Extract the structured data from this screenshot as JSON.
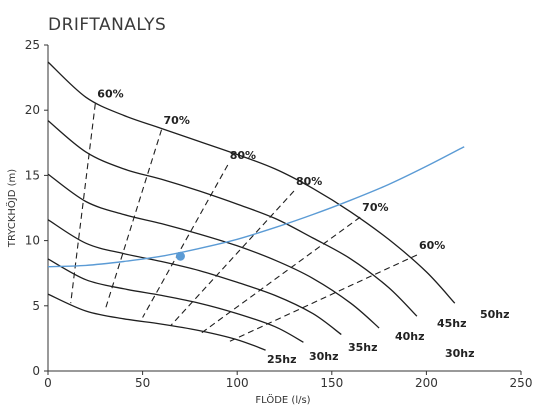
{
  "chart_data": {
    "type": "line",
    "title": "DRIFTANALYS",
    "xlabel": "FLÖDE (l/s)",
    "ylabel": "TRYCKHÖJD (m)",
    "xlim": [
      0,
      250
    ],
    "ylim": [
      0,
      25
    ],
    "x_ticks": [
      "0",
      "50",
      "100",
      "150",
      "200",
      "250"
    ],
    "y_ticks": [
      "0",
      "5",
      "10",
      "15",
      "20",
      "25"
    ],
    "grid": false,
    "colors": {
      "system_curve": "#5b9bd5",
      "operating_point": "#5b9bd5",
      "curves": "#1f1f1f"
    },
    "series": [
      {
        "name": "50hz",
        "x": [
          0,
          20,
          40,
          60,
          80,
          100,
          120,
          140,
          160,
          180,
          200,
          215
        ],
        "y": [
          23.7,
          21.0,
          19.6,
          18.6,
          17.6,
          16.6,
          15.5,
          14.0,
          12.2,
          10.1,
          7.6,
          5.2
        ]
      },
      {
        "name": "45hz",
        "x": [
          0,
          20,
          40,
          60,
          80,
          100,
          120,
          140,
          160,
          180,
          195
        ],
        "y": [
          19.2,
          16.8,
          15.5,
          14.7,
          13.8,
          12.8,
          11.7,
          10.2,
          8.6,
          6.4,
          4.2
        ]
      },
      {
        "name": "40hz",
        "x": [
          0,
          20,
          40,
          60,
          80,
          100,
          120,
          140,
          160,
          175
        ],
        "y": [
          15.1,
          13.0,
          12.0,
          11.3,
          10.5,
          9.6,
          8.5,
          7.1,
          5.2,
          3.3
        ]
      },
      {
        "name": "35hz",
        "x": [
          0,
          20,
          40,
          60,
          80,
          100,
          120,
          140,
          155
        ],
        "y": [
          11.6,
          9.8,
          9.0,
          8.4,
          7.7,
          6.8,
          5.8,
          4.4,
          2.8
        ]
      },
      {
        "name": "30hz",
        "x": [
          0,
          20,
          40,
          60,
          80,
          100,
          120,
          135
        ],
        "y": [
          8.6,
          7.0,
          6.3,
          5.8,
          5.2,
          4.4,
          3.4,
          2.2
        ]
      },
      {
        "name": "25hz",
        "x": [
          0,
          20,
          40,
          60,
          80,
          100,
          115
        ],
        "y": [
          5.9,
          4.6,
          4.0,
          3.6,
          3.1,
          2.4,
          1.6
        ]
      }
    ],
    "efficiency_lines": [
      {
        "label": "60%",
        "x": [
          25,
          12
        ],
        "y": [
          20.5,
          5.2
        ]
      },
      {
        "label": "70%",
        "x": [
          60,
          30
        ],
        "y": [
          18.5,
          4.6
        ]
      },
      {
        "label": "80%",
        "x": [
          95,
          50
        ],
        "y": [
          15.8,
          4.1
        ]
      },
      {
        "label": "80%",
        "x": [
          130,
          65
        ],
        "y": [
          13.8,
          3.5
        ]
      },
      {
        "label": "70%",
        "x": [
          165,
          80
        ],
        "y": [
          11.8,
          2.8
        ]
      },
      {
        "label": "60%",
        "x": [
          195,
          95
        ],
        "y": [
          8.9,
          2.2
        ]
      }
    ],
    "curve_labels": [
      "50hz",
      "45hz",
      "40hz",
      "35hz",
      "30hz",
      "25hz",
      "30hz"
    ],
    "system_curve": {
      "x": [
        0,
        20,
        40,
        60,
        80,
        100,
        120,
        140,
        160,
        180,
        200,
        220
      ],
      "y": [
        8.0,
        8.1,
        8.4,
        8.8,
        9.4,
        10.1,
        11.0,
        12.0,
        13.1,
        14.3,
        15.7,
        17.2
      ]
    },
    "operating_point": {
      "x": 70,
      "y": 8.8
    }
  }
}
